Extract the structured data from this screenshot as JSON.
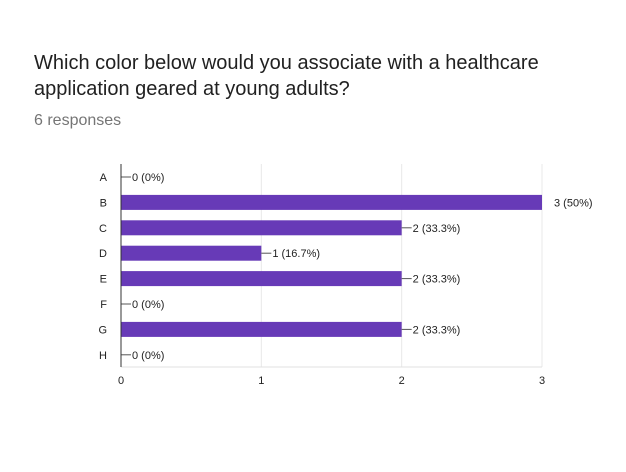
{
  "question": {
    "title": "Which color below would you associate with a healthcare application geared at young adults?",
    "responses": "6 responses"
  },
  "chart_data": {
    "type": "bar",
    "orientation": "horizontal",
    "categories": [
      "A",
      "B",
      "C",
      "D",
      "E",
      "F",
      "G",
      "H"
    ],
    "values": [
      0,
      3,
      2,
      1,
      2,
      0,
      2,
      0
    ],
    "value_labels": [
      "0 (0%)",
      "3 (50%)",
      "2 (33.3%)",
      "1 (16.7%)",
      "2 (33.3%)",
      "0 (0%)",
      "2 (33.3%)",
      "0 (0%)"
    ],
    "xlim": [
      0,
      3
    ],
    "x_ticks": [
      "0",
      "1",
      "2",
      "3"
    ],
    "bar_color": "#673AB7",
    "grid": true
  }
}
